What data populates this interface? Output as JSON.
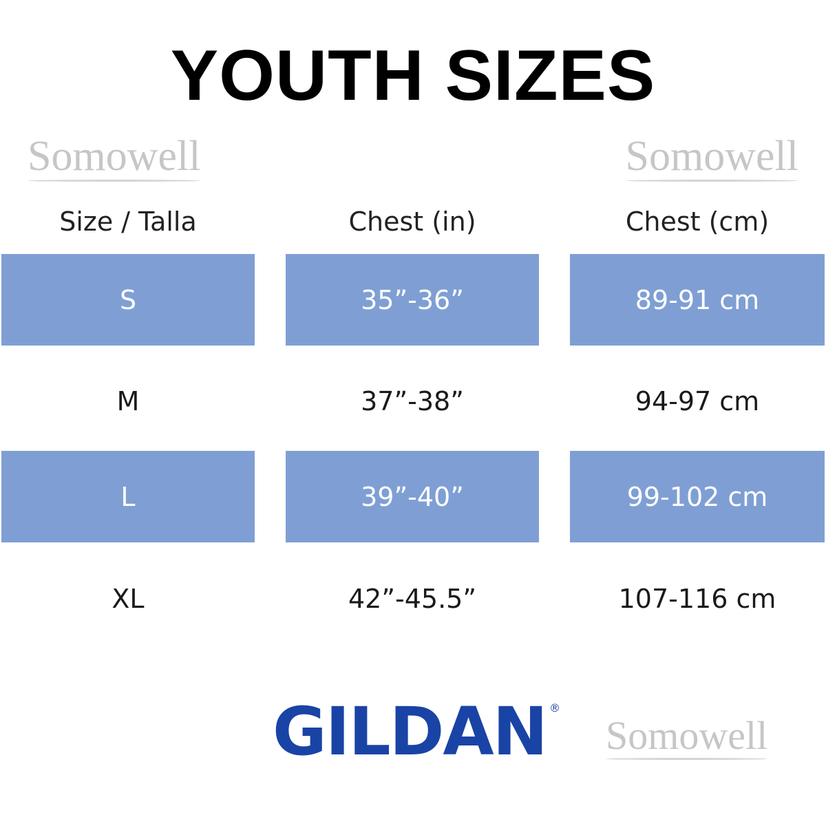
{
  "title": "YOUTH SIZES",
  "table": {
    "headers": [
      "Size / Talla",
      "Chest (in)",
      "Chest (cm)"
    ],
    "rows": [
      [
        "S",
        "35”-36”",
        "89-91 cm"
      ],
      [
        "M",
        "37”-38”",
        "94-97 cm"
      ],
      [
        "L",
        "39”-40”",
        "99-102 cm"
      ],
      [
        "XL",
        "42”-45.5”",
        "107-116 cm"
      ]
    ],
    "band_color": "#7f9fd4"
  },
  "brand": {
    "logo": "GILDAN",
    "registered": "®",
    "color": "#1a43a6"
  },
  "watermark": "Somowell"
}
